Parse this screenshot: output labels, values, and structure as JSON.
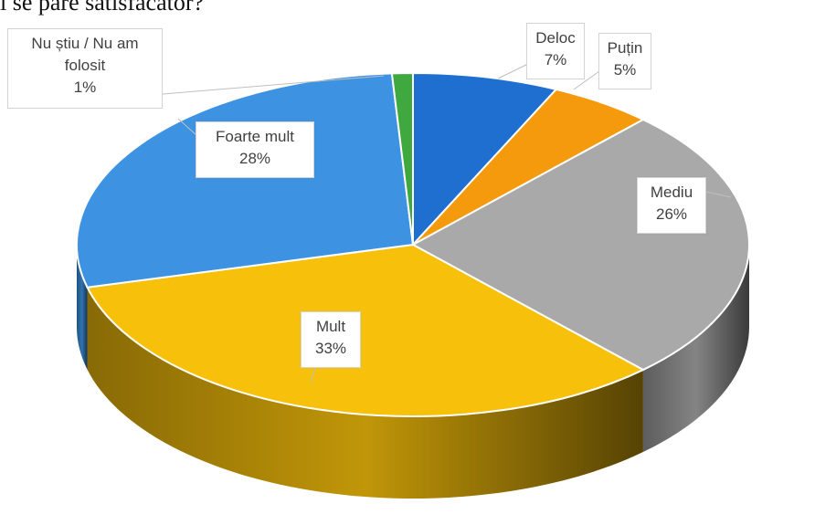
{
  "header_fragment": "i se pare satisfacator?",
  "chart_data": {
    "type": "pie",
    "style": "3d",
    "slices": [
      {
        "label": "Deloc",
        "value": 7,
        "value_label": "7%",
        "color": "#1f6fd1"
      },
      {
        "label": "Puțin",
        "value": 5,
        "value_label": "5%",
        "color": "#f59a0c"
      },
      {
        "label": "Mediu",
        "value": 26,
        "value_label": "26%",
        "color": "#a9a9a9"
      },
      {
        "label": "Mult",
        "value": 33,
        "value_label": "33%",
        "color": "#f7c00a"
      },
      {
        "label": "Foarte mult",
        "value": 28,
        "value_label": "28%",
        "color": "#3d93e2"
      },
      {
        "label": "Nu știu / Nu am folosit",
        "label_lines": [
          "Nu știu / Nu am",
          "folosit"
        ],
        "value": 1,
        "value_label": "1%",
        "color": "#3fa93f"
      }
    ],
    "legend": "none",
    "data_labels": "callouts"
  }
}
